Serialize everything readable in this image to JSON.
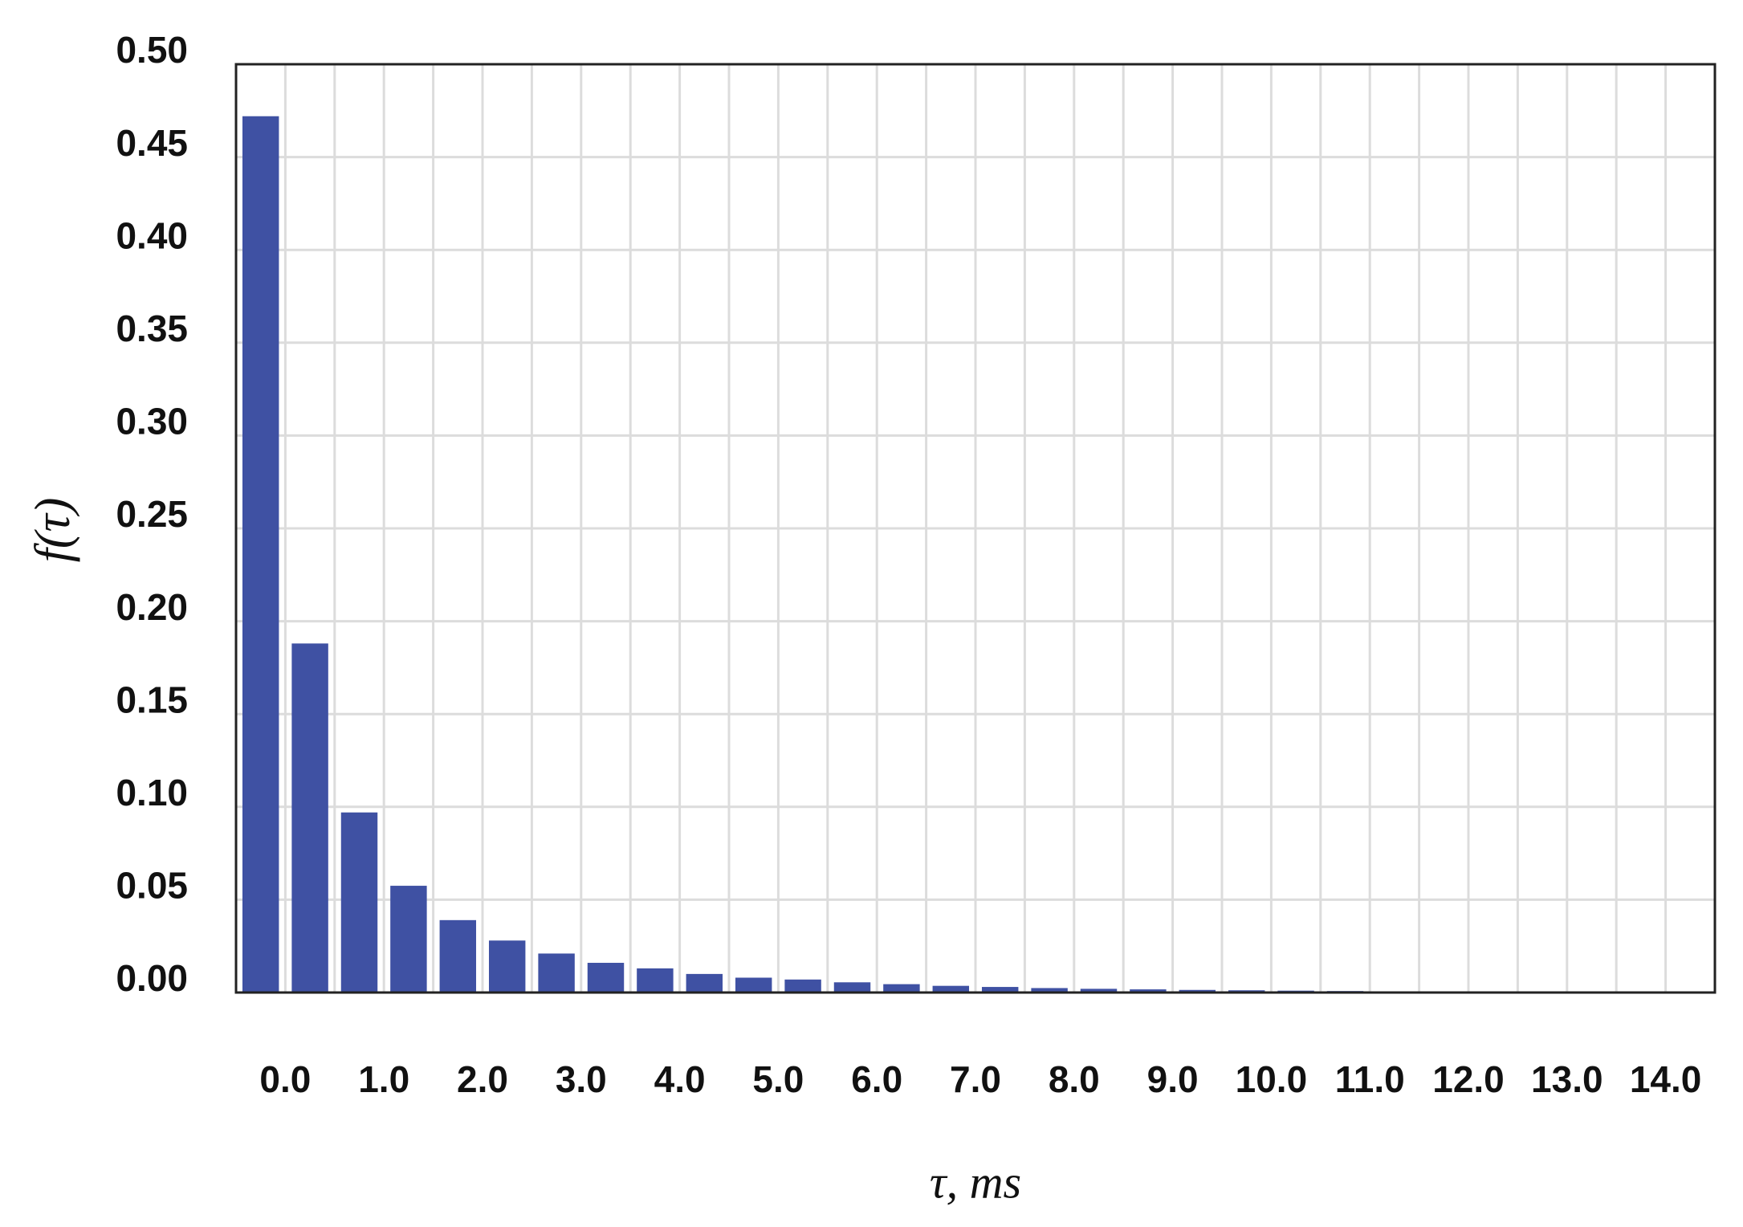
{
  "chart_data": {
    "type": "bar",
    "x_label": "τ, ms",
    "y_label": "f(τ)",
    "categories": [
      "0.0",
      null,
      "1.0",
      null,
      "2.0",
      null,
      "3.0",
      null,
      "4.0",
      null,
      "5.0",
      null,
      "6.0",
      null,
      "7.0",
      null,
      "8.0",
      null,
      "9.0",
      null,
      "10.0",
      null,
      "11.0",
      null,
      "12.0",
      null,
      "13.0",
      null,
      "14.0",
      null
    ],
    "values": [
      0.472,
      0.188,
      0.097,
      0.0575,
      0.039,
      0.028,
      0.021,
      0.016,
      0.013,
      0.01,
      0.008,
      0.007,
      0.0055,
      0.0045,
      0.0036,
      0.003,
      0.0024,
      0.002,
      0.0017,
      0.0014,
      0.0012,
      0.001,
      0.0008,
      0.0006,
      0.0005,
      0.0004,
      0.0003,
      0.0002,
      0.0002,
      0.0001
    ],
    "color": "#3f51a3",
    "ylim": [
      0,
      0.5
    ],
    "yticks": [
      {
        "value": 0,
        "label": "0.00"
      },
      {
        "value": 0.05,
        "label": "0.05"
      },
      {
        "value": 0.1,
        "label": "0.10"
      },
      {
        "value": 0.15,
        "label": "0.15"
      },
      {
        "value": 0.2,
        "label": "0.20"
      },
      {
        "value": 0.25,
        "label": "0.25"
      },
      {
        "value": 0.3,
        "label": "0.30"
      },
      {
        "value": 0.35,
        "label": "0.35"
      },
      {
        "value": 0.4,
        "label": "0.40"
      },
      {
        "value": 0.45,
        "label": "0.45"
      },
      {
        "value": 0.5,
        "label": "0.50"
      }
    ],
    "grid": true
  }
}
